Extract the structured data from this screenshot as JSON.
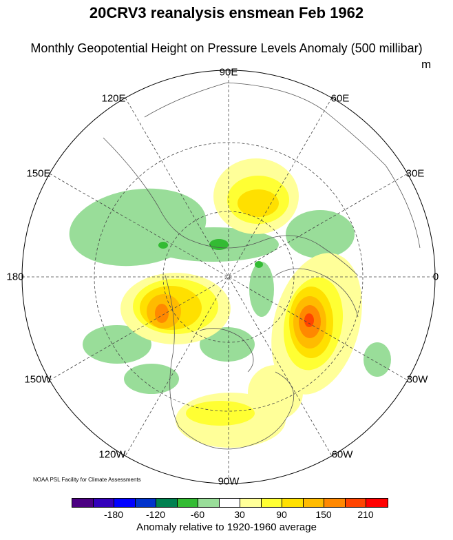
{
  "title": "20CRV3 reanalysis ensmean Feb 1962",
  "subtitle": "Monthly Geopotential Height on Pressure Levels Anomaly (500 millibar)",
  "units": "m",
  "longitude_labels": [
    "90E",
    "60E",
    "30E",
    "0",
    "30W",
    "60W",
    "90W",
    "120W",
    "150W",
    "180",
    "150E",
    "120E"
  ],
  "credit": "NOAA PSL Facility for Climate Assessments",
  "colorbar": {
    "colors": [
      "#4B0082",
      "#3300BB",
      "#0000FF",
      "#0033CC",
      "#008050",
      "#33BB33",
      "#99DD99",
      "#FFFFFF",
      "#FFFF99",
      "#FFFF33",
      "#FFE000",
      "#FFBB00",
      "#FF8800",
      "#FF4400",
      "#FF0000"
    ],
    "tick_labels": [
      "-180",
      "-120",
      "-60",
      "30",
      "90",
      "150",
      "210"
    ],
    "caption": "Anomaly relative to 1920-1960 average"
  }
}
